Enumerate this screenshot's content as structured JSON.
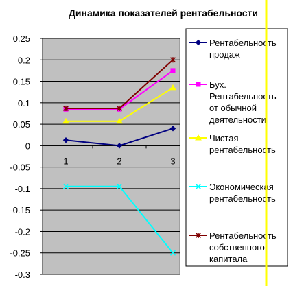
{
  "chart_data": {
    "type": "line",
    "title": "Динамика показателей рентабельности",
    "x": [
      "1",
      "2",
      "3"
    ],
    "ylim": [
      -0.3,
      0.25
    ],
    "yticks": [
      "0.25",
      "0.2",
      "0.15",
      "0.1",
      "0.05",
      "0",
      "-0.05",
      "-0.1",
      "-0.15",
      "-0.2",
      "-0.25",
      "-0.3"
    ],
    "ytick_values": [
      0.25,
      0.2,
      0.15,
      0.1,
      0.05,
      0,
      -0.05,
      -0.1,
      -0.15,
      -0.2,
      -0.25,
      -0.3
    ],
    "grid": true,
    "legend_position": "right",
    "series": [
      {
        "name": "Рентабельность продаж",
        "legend_lines": [
          "Рентабельность",
          "продаж"
        ],
        "values": [
          0.013,
          0.0,
          0.04
        ],
        "color": "#000080",
        "marker": "diamond"
      },
      {
        "name": "Бух. Рентабельность от обычной деятельности",
        "legend_lines": [
          "Бух.",
          "Рентабельность",
          "от обычной",
          "деятельности"
        ],
        "values": [
          0.085,
          0.085,
          0.175
        ],
        "color": "#ff00ff",
        "marker": "square"
      },
      {
        "name": "Чистая рентабельность",
        "legend_lines": [
          "Чистая",
          "рентабельность"
        ],
        "values": [
          0.057,
          0.057,
          0.135
        ],
        "color": "#ffff00",
        "marker": "triangle"
      },
      {
        "name": "Экономическая рентабельность",
        "legend_lines": [
          "Экономическая",
          "рентабельность"
        ],
        "values": [
          -0.095,
          -0.095,
          -0.25
        ],
        "color": "#00ffff",
        "marker": "x"
      },
      {
        "name": "Рентабельность собственного капитала",
        "legend_lines": [
          "Рентабельность",
          "собственного",
          "капитала"
        ],
        "values": [
          0.087,
          0.087,
          0.2
        ],
        "color": "#800000",
        "marker": "star"
      }
    ]
  }
}
